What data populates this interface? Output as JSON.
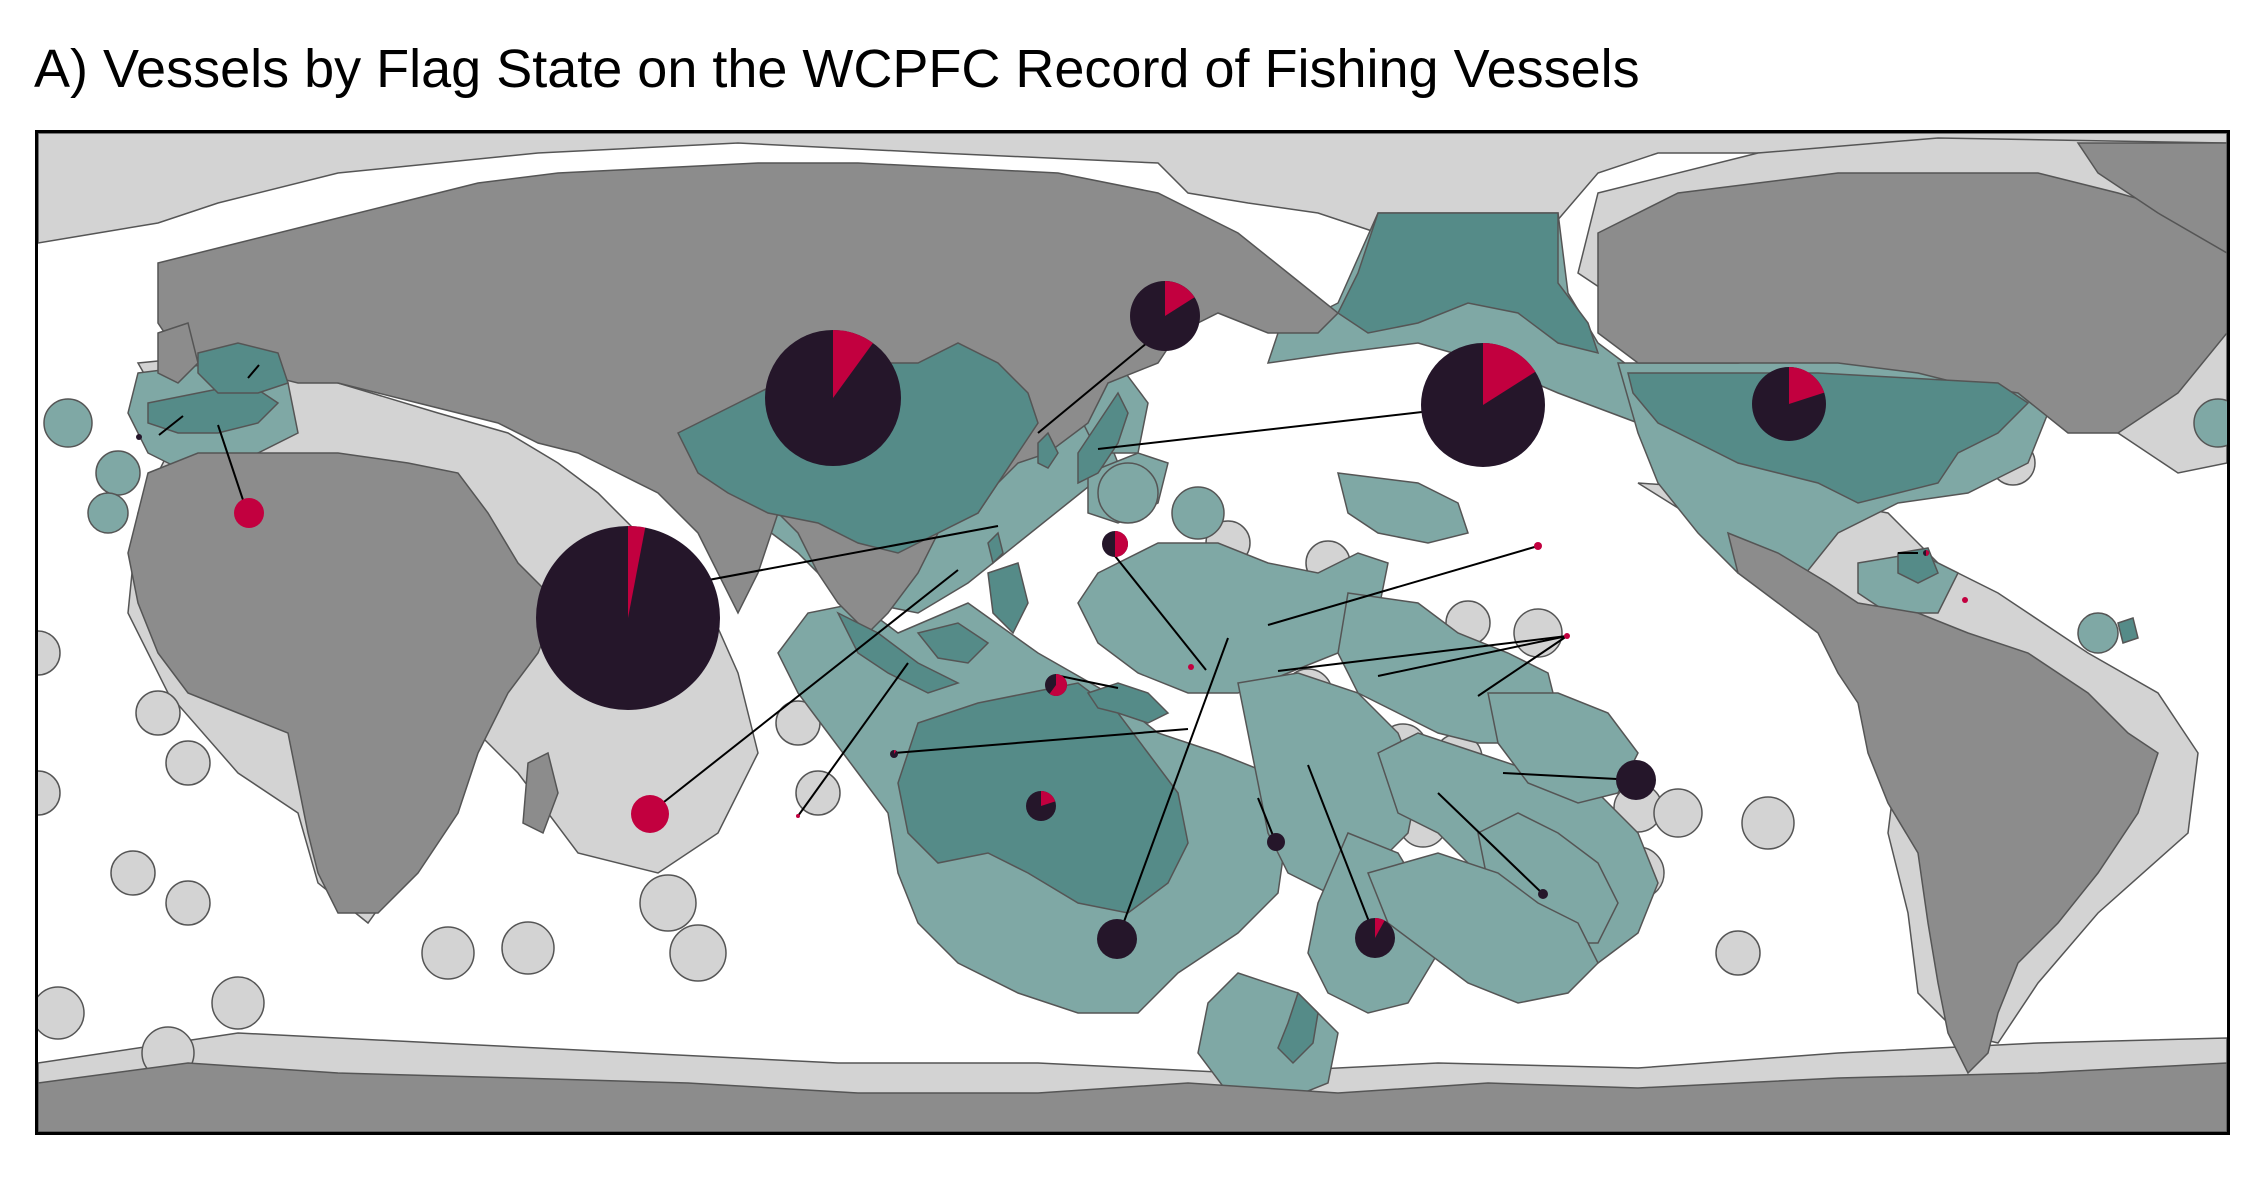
{
  "title": "A) Vessels by Flag State on the WCPFC Record of Fishing Vessels",
  "colors": {
    "ocean": "#ffffff",
    "land_other": "#8c8c8c",
    "eez_other": "#d3d3d3",
    "member_land": "#558b88",
    "member_eez": "#7fa8a5",
    "border": "#555555",
    "pie_primary": "#25162a",
    "pie_secondary": "#c2003f",
    "leader_line": "#000000"
  },
  "pies": [
    {
      "id": "china",
      "share": 0.1
    },
    {
      "id": "taiwan",
      "share": 0.03
    },
    {
      "id": "japan",
      "share": 0.16
    },
    {
      "id": "korea",
      "share": 0.16
    },
    {
      "id": "usa",
      "share": 0.2
    },
    {
      "id": "spain",
      "share": 1.0
    },
    {
      "id": "portugal",
      "share": 0.0
    },
    {
      "id": "el-salvador",
      "share": 0.5
    },
    {
      "id": "philippines",
      "share": 0.5
    },
    {
      "id": "indonesia",
      "share": 0.6
    },
    {
      "id": "australia",
      "share": 0.2
    },
    {
      "id": "png",
      "share": 0.1
    },
    {
      "id": "vanuatu",
      "share": 1.0
    },
    {
      "id": "fsm",
      "share": 1.0
    },
    {
      "id": "marshall",
      "share": 1.0
    },
    {
      "id": "kiribati",
      "share": 1.0
    },
    {
      "id": "vietnam",
      "share": 1.0
    },
    {
      "id": "new-caledonia",
      "share": 0.0
    },
    {
      "id": "fiji",
      "share": 0.0
    },
    {
      "id": "cook-islands",
      "share": 0.0
    },
    {
      "id": "tonga",
      "share": 0.0
    },
    {
      "id": "new-zealand",
      "share": 0.08
    },
    {
      "id": "belize",
      "share": 1.0
    }
  ]
}
